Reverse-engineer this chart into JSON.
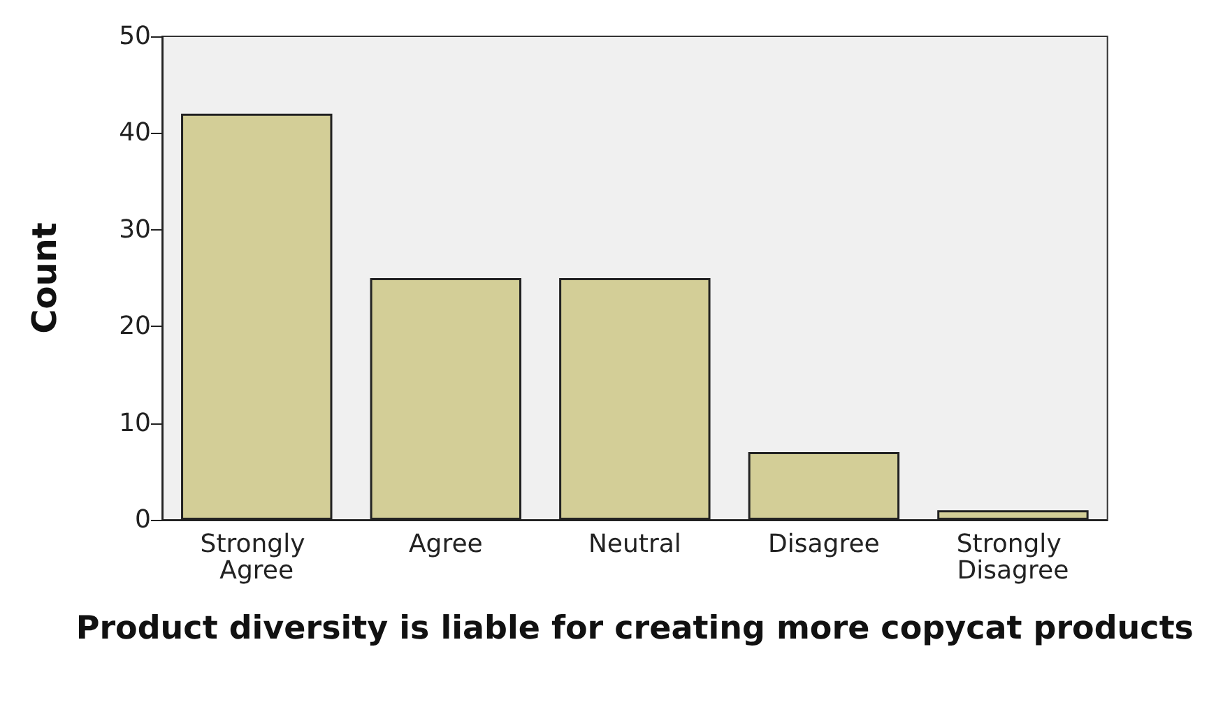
{
  "chart_data": {
    "type": "bar",
    "xlabel": "Product diversity is liable for creating more copycat products",
    "ylabel": "Count",
    "categories": [
      "Strongly Agree",
      "Agree",
      "Neutral",
      "Disagree",
      "Strongly Disagree"
    ],
    "values": [
      42,
      25,
      25,
      7,
      1
    ],
    "color": "#d3ce97",
    "ylim": [
      0,
      50
    ],
    "yticks": [
      0,
      10,
      20,
      30,
      40,
      50
    ],
    "grid": false
  }
}
